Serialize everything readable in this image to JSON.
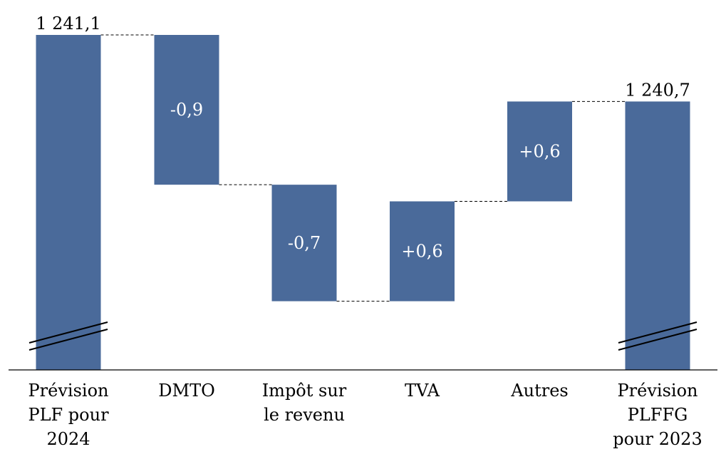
{
  "chart_data": {
    "type": "waterfall",
    "title": "",
    "xlabel": "",
    "ylabel": "",
    "axis_break": true,
    "bar_color": "#4a6a9a",
    "categories": [
      [
        "Prévision",
        "PLF pour",
        "2024"
      ],
      [
        "DMTO"
      ],
      [
        "Impôt sur",
        "le revenu"
      ],
      [
        "TVA"
      ],
      [
        "Autres"
      ],
      [
        "Prévision",
        "PLFFG",
        "pour 2023"
      ]
    ],
    "bars": [
      {
        "kind": "total",
        "value": 1241.1,
        "label": "1 241,1"
      },
      {
        "kind": "delta",
        "value": -0.9,
        "label": "-0,9"
      },
      {
        "kind": "delta",
        "value": -0.7,
        "label": "-0,7"
      },
      {
        "kind": "delta",
        "value": 0.6,
        "label": "+0,6"
      },
      {
        "kind": "delta",
        "value": 0.6,
        "label": "+0,6"
      },
      {
        "kind": "total",
        "value": 1240.7,
        "label": "1 240,7"
      }
    ]
  }
}
